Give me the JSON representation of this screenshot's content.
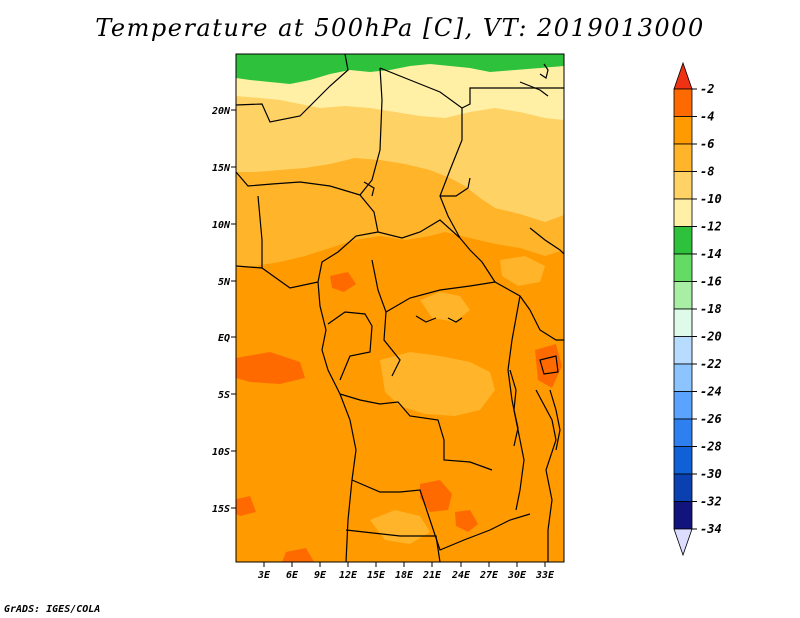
{
  "title": "Temperature at 500hPa [C], VT: 2019013000",
  "credit": "GrADS: IGES/COLA",
  "lat_labels": [
    "20N",
    "15N",
    "10N",
    "5N",
    "EQ",
    "5S",
    "10S",
    "15S"
  ],
  "lon_labels": [
    "3E",
    "6E",
    "9E",
    "12E",
    "15E",
    "18E",
    "21E",
    "24E",
    "27E",
    "30E",
    "33E"
  ],
  "colorbar": {
    "labels": [
      "-2",
      "-4",
      "-6",
      "-8",
      "-10",
      "-12",
      "-14",
      "-16",
      "-18",
      "-20",
      "-22",
      "-24",
      "-26",
      "-28",
      "-30",
      "-32",
      "-34"
    ],
    "colors": [
      "#ff3a1e",
      "#ff6a00",
      "#ff9a00",
      "#ffb42a",
      "#ffd266",
      "#fff0a6",
      "#2ec23c",
      "#64dc64",
      "#a8eea4",
      "#ddfbe8",
      "#b8dcff",
      "#8cc4ff",
      "#5aa4ff",
      "#2e80f0",
      "#1060d8",
      "#0a40b0",
      "#10147c"
    ],
    "top_cap_color": "#f03214",
    "bottom_cap_color": "#ddddff"
  }
}
